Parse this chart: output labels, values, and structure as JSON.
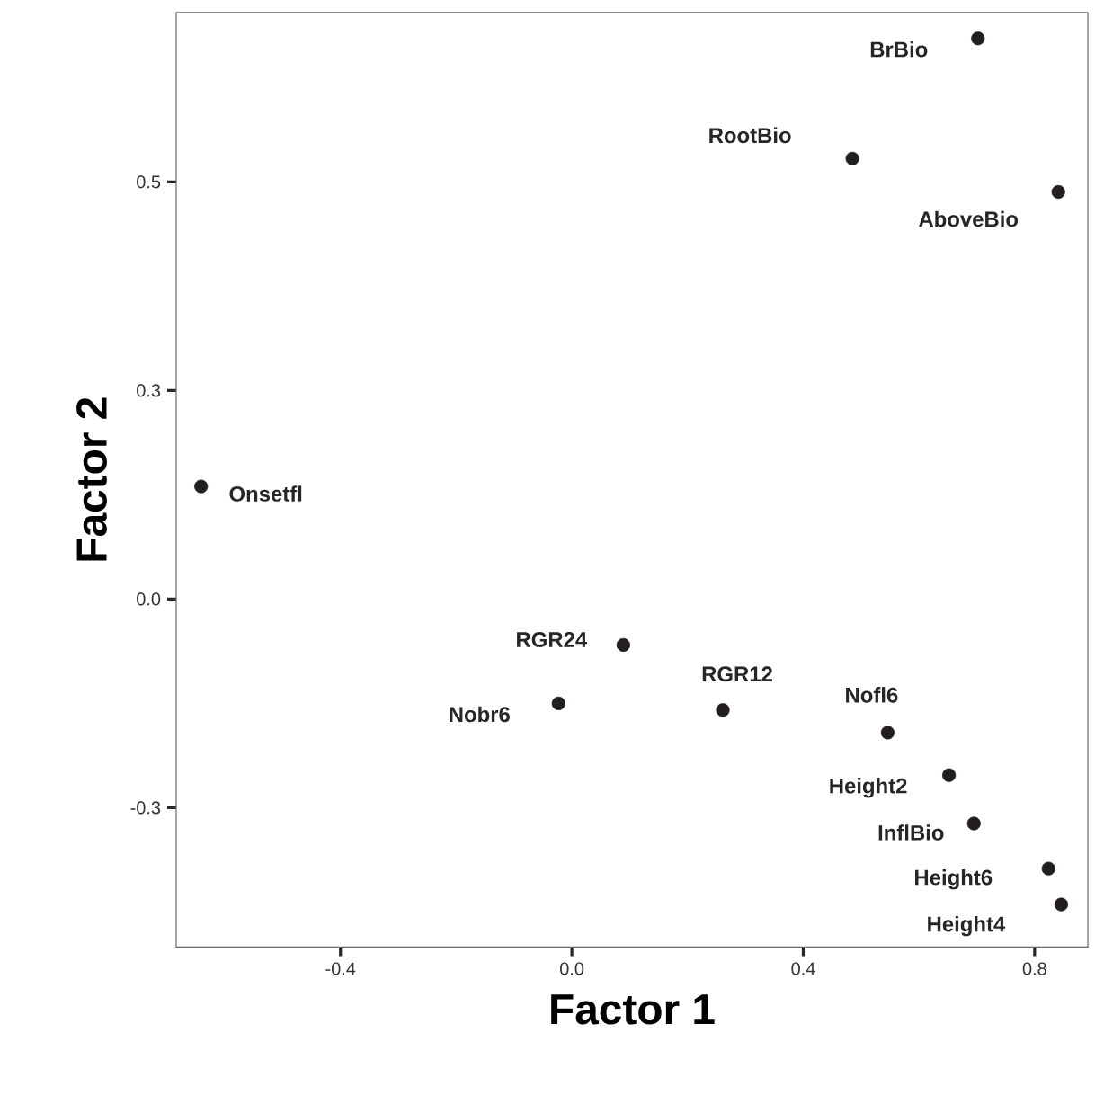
{
  "chart_data": {
    "type": "scatter",
    "xlabel": "Factor 1",
    "ylabel": "Factor 2",
    "color": "#231f20",
    "x": [
      0.702,
      0.485,
      0.841,
      -0.641,
      0.089,
      -0.023,
      0.261,
      0.546,
      0.652,
      0.695,
      0.824,
      0.846
    ],
    "values": [
      0.672,
      0.528,
      0.488,
      0.135,
      -0.055,
      -0.125,
      -0.133,
      -0.16,
      -0.211,
      -0.269,
      -0.323,
      -0.366
    ],
    "xlim": [
      -0.684,
      0.892
    ],
    "ylim": [
      -0.417,
      0.703
    ],
    "xticks": [
      -0.4,
      {
        "value": 0,
        "label": "0.0"
      },
      0.4,
      0.8
    ],
    "yticks": [
      {
        "value": -0.25,
        "label": "-0.3"
      },
      {
        "value": 0,
        "label": "0.0"
      },
      {
        "value": 0.25,
        "label": "0.3"
      },
      {
        "value": 0.5,
        "label": "0.5"
      }
    ],
    "annotations": [
      {
        "text": "BrBio",
        "x": 0.702,
        "y": 0.672
      },
      {
        "text": "RootBio",
        "x": 0.485,
        "y": 0.528
      },
      {
        "text": "AboveBio",
        "x": 0.841,
        "y": 0.488
      },
      {
        "text": "Onsetfl",
        "x": -0.641,
        "y": 0.135
      },
      {
        "text": "RGR24",
        "x": 0.089,
        "y": -0.055
      },
      {
        "text": "Nobr6",
        "x": -0.023,
        "y": -0.125
      },
      {
        "text": "RGR12",
        "x": 0.261,
        "y": -0.133
      },
      {
        "text": "Nofl6",
        "x": 0.546,
        "y": -0.16
      },
      {
        "text": "Height2",
        "x": 0.652,
        "y": -0.211
      },
      {
        "text": "InflBio",
        "x": 0.695,
        "y": -0.269
      },
      {
        "text": "Height6",
        "x": 0.824,
        "y": -0.323
      },
      {
        "text": "Height4",
        "x": 0.846,
        "y": -0.366
      }
    ]
  }
}
